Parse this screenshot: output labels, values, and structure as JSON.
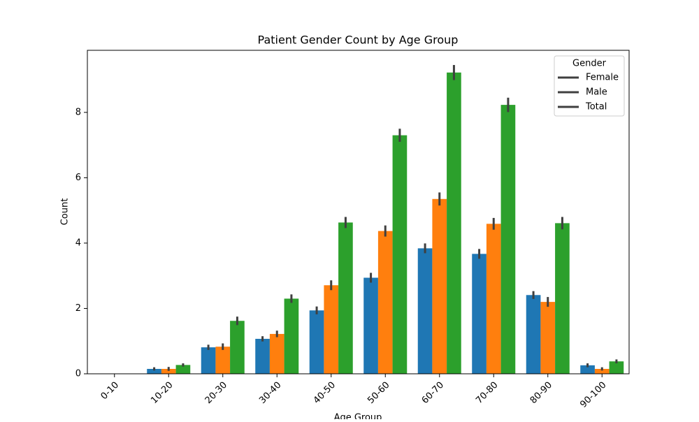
{
  "chart_data": {
    "type": "bar",
    "title": "Patient Gender Count by Age Group",
    "x_label": "Age Group",
    "y_label": "Count",
    "categories": [
      "0-10",
      "10-20",
      "20-30",
      "30-40",
      "40-50",
      "50-60",
      "60-70",
      "70-80",
      "80-90",
      "90-100"
    ],
    "series": [
      {
        "name": "Female",
        "color": "#1f77b4",
        "values": [
          0,
          0.15,
          0.81,
          1.07,
          1.94,
          2.94,
          3.84,
          3.67,
          2.41,
          0.26
        ],
        "errors": [
          0,
          0.05,
          0.08,
          0.08,
          0.12,
          0.15,
          0.15,
          0.15,
          0.12,
          0.06
        ]
      },
      {
        "name": "Male",
        "color": "#ff7f0e",
        "values": [
          0,
          0.15,
          0.83,
          1.22,
          2.71,
          4.37,
          5.35,
          4.59,
          2.2,
          0.15
        ],
        "errors": [
          0,
          0.06,
          0.1,
          0.1,
          0.15,
          0.17,
          0.2,
          0.18,
          0.15,
          0.05
        ]
      },
      {
        "name": "Total",
        "color": "#2ca02c",
        "values": [
          0,
          0.27,
          1.62,
          2.3,
          4.63,
          7.3,
          9.22,
          8.23,
          4.61,
          0.38
        ],
        "errors": [
          0,
          0.05,
          0.13,
          0.13,
          0.17,
          0.2,
          0.23,
          0.22,
          0.19,
          0.06
        ]
      }
    ],
    "ylim": [
      0,
      9.9
    ],
    "yticks": [
      0,
      2,
      4,
      6,
      8
    ],
    "legend": {
      "title": "Gender",
      "position": "upper right",
      "handle_color": "#3f3f3f"
    },
    "error_color": "#3f3f3f"
  }
}
